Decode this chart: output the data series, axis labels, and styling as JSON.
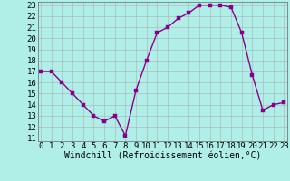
{
  "x": [
    0,
    1,
    2,
    3,
    4,
    5,
    6,
    7,
    8,
    9,
    10,
    11,
    12,
    13,
    14,
    15,
    16,
    17,
    18,
    19,
    20,
    21,
    22,
    23
  ],
  "y": [
    17,
    17,
    16,
    15,
    14,
    13,
    12.5,
    13,
    11.2,
    15.3,
    18,
    20.5,
    21,
    21.8,
    22.3,
    23,
    23,
    23,
    22.8,
    20.5,
    16.7,
    13.5,
    14,
    14.2
  ],
  "line_color": "#880088",
  "marker_color": "#880088",
  "bg_color": "#b0eee8",
  "grid_color": "#aaaaaa",
  "xlabel": "Windchill (Refroidissement éolien,°C)",
  "ylim_min": 11,
  "ylim_max": 23,
  "xlim_min": 0,
  "xlim_max": 23,
  "yticks": [
    11,
    12,
    13,
    14,
    15,
    16,
    17,
    18,
    19,
    20,
    21,
    22,
    23
  ],
  "xticks": [
    0,
    1,
    2,
    3,
    4,
    5,
    6,
    7,
    8,
    9,
    10,
    11,
    12,
    13,
    14,
    15,
    16,
    17,
    18,
    19,
    20,
    21,
    22,
    23
  ],
  "marker_size": 2.5,
  "line_width": 1.0,
  "font_size": 6.5,
  "xlabel_font_size": 7.0
}
